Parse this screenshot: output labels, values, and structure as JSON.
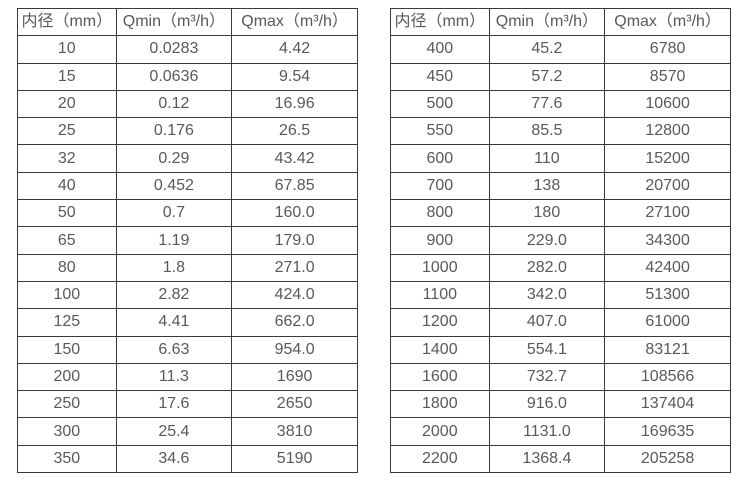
{
  "colors": {
    "background": "#ffffff",
    "border": "#3a3a3a",
    "text": "#595959"
  },
  "tables": [
    {
      "name": "flow-spec-table-small-diameters",
      "headers": [
        "内径（mm）",
        "Qmin（m³/h）",
        "Qmax（m³/h）"
      ],
      "rows": [
        [
          "10",
          "0.0283",
          "4.42"
        ],
        [
          "15",
          "0.0636",
          "9.54"
        ],
        [
          "20",
          "0.12",
          "16.96"
        ],
        [
          "25",
          "0.176",
          "26.5"
        ],
        [
          "32",
          "0.29",
          "43.42"
        ],
        [
          "40",
          "0.452",
          "67.85"
        ],
        [
          "50",
          "0.7",
          "160.0"
        ],
        [
          "65",
          "1.19",
          "179.0"
        ],
        [
          "80",
          "1.8",
          "271.0"
        ],
        [
          "100",
          "2.82",
          "424.0"
        ],
        [
          "125",
          "4.41",
          "662.0"
        ],
        [
          "150",
          "6.63",
          "954.0"
        ],
        [
          "200",
          "11.3",
          "1690"
        ],
        [
          "250",
          "17.6",
          "2650"
        ],
        [
          "300",
          "25.4",
          "3810"
        ],
        [
          "350",
          "34.6",
          "5190"
        ]
      ]
    },
    {
      "name": "flow-spec-table-large-diameters",
      "headers": [
        "内径（mm）",
        "Qmin（m³/h）",
        "Qmax（m³/h）"
      ],
      "rows": [
        [
          "400",
          "45.2",
          "6780"
        ],
        [
          "450",
          "57.2",
          "8570"
        ],
        [
          "500",
          "77.6",
          "10600"
        ],
        [
          "550",
          "85.5",
          "12800"
        ],
        [
          "600",
          "110",
          "15200"
        ],
        [
          "700",
          "138",
          "20700"
        ],
        [
          "800",
          "180",
          "27100"
        ],
        [
          "900",
          "229.0",
          "34300"
        ],
        [
          "1000",
          "282.0",
          "42400"
        ],
        [
          "1100",
          "342.0",
          "51300"
        ],
        [
          "1200",
          "407.0",
          "61000"
        ],
        [
          "1400",
          "554.1",
          "83121"
        ],
        [
          "1600",
          "732.7",
          "108566"
        ],
        [
          "1800",
          "916.0",
          "137404"
        ],
        [
          "2000",
          "1131.0",
          "169635"
        ],
        [
          "2200",
          "1368.4",
          "205258"
        ]
      ]
    }
  ]
}
